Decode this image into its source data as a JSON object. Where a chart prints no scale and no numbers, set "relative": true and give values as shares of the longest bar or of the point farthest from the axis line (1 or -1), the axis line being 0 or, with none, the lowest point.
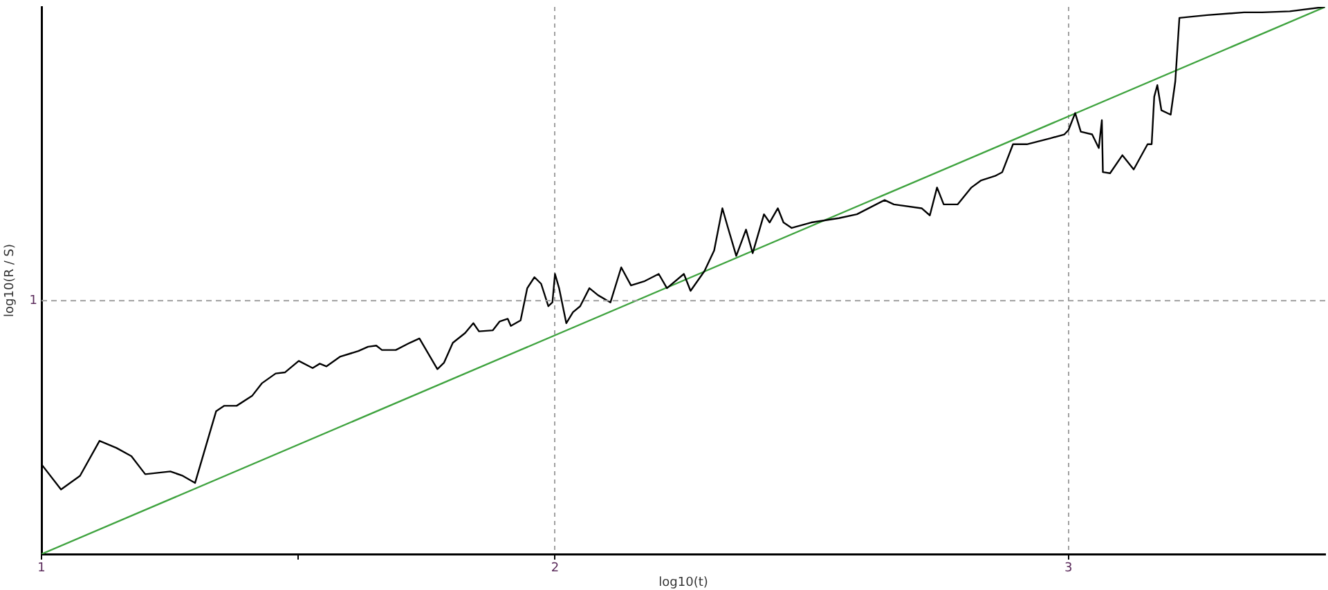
{
  "chart_data": {
    "type": "line",
    "xlabel": "log10(t)",
    "ylabel": "log10(R / S)",
    "relative": true,
    "xlim": [
      1,
      3.5
    ],
    "xticks": [
      1,
      {
        "value": 1.5,
        "label": null
      },
      2,
      3
    ],
    "grid": "x",
    "marker": "none",
    "line_style": "solid",
    "legend": false,
    "ref_lines": [
      {
        "axis": "y",
        "value": 0.463,
        "color": "#a0a0a0",
        "line_style": "dashed"
      }
    ],
    "annotations": [
      "1"
    ],
    "series": [
      {
        "color": "#000000",
        "x": [
          1.0,
          1.038,
          1.075,
          1.113,
          1.146,
          1.175,
          1.202,
          1.251,
          1.275,
          1.299,
          1.34,
          1.356,
          1.38,
          1.41,
          1.429,
          1.456,
          1.474,
          1.501,
          1.528,
          1.542,
          1.555,
          1.582,
          1.617,
          1.636,
          1.652,
          1.663,
          1.69,
          1.717,
          1.736,
          1.771,
          1.784,
          1.801,
          1.825,
          1.841,
          1.852,
          1.879,
          1.892,
          1.908,
          1.914,
          1.933,
          1.946,
          1.96,
          1.973,
          1.987,
          1.995,
          2.0,
          2.008,
          2.022,
          2.035,
          2.049,
          2.067,
          2.084,
          2.108,
          2.129,
          2.148,
          2.175,
          2.202,
          2.218,
          2.251,
          2.264,
          2.291,
          2.31,
          2.326,
          2.337,
          2.353,
          2.372,
          2.385,
          2.407,
          2.418,
          2.434,
          2.445,
          2.461,
          2.499,
          2.553,
          2.588,
          2.642,
          2.66,
          2.714,
          2.73,
          2.744,
          2.757,
          2.784,
          2.811,
          2.83,
          2.857,
          2.871,
          2.892,
          2.919,
          2.965,
          2.992,
          3.0,
          3.013,
          3.024,
          3.046,
          3.059,
          3.065,
          3.067,
          3.081,
          3.105,
          3.127,
          3.154,
          3.162,
          3.167,
          3.173,
          3.181,
          3.199,
          3.208,
          3.216,
          3.27,
          3.342,
          3.377,
          3.431,
          3.499
        ],
        "values": [
          0.164,
          0.118,
          0.143,
          0.207,
          0.194,
          0.179,
          0.146,
          0.151,
          0.143,
          0.13,
          0.261,
          0.271,
          0.271,
          0.289,
          0.312,
          0.33,
          0.332,
          0.353,
          0.34,
          0.348,
          0.343,
          0.361,
          0.371,
          0.379,
          0.381,
          0.373,
          0.373,
          0.386,
          0.394,
          0.338,
          0.35,
          0.386,
          0.404,
          0.422,
          0.407,
          0.409,
          0.425,
          0.43,
          0.417,
          0.427,
          0.486,
          0.506,
          0.494,
          0.453,
          0.46,
          0.512,
          0.486,
          0.422,
          0.442,
          0.453,
          0.486,
          0.473,
          0.46,
          0.524,
          0.491,
          0.499,
          0.512,
          0.486,
          0.512,
          0.481,
          0.517,
          0.555,
          0.632,
          0.596,
          0.545,
          0.593,
          0.55,
          0.621,
          0.606,
          0.632,
          0.606,
          0.596,
          0.606,
          0.614,
          0.621,
          0.647,
          0.639,
          0.632,
          0.619,
          0.67,
          0.639,
          0.639,
          0.67,
          0.683,
          0.691,
          0.698,
          0.749,
          0.749,
          0.76,
          0.767,
          0.775,
          0.806,
          0.772,
          0.767,
          0.742,
          0.793,
          0.698,
          0.696,
          0.729,
          0.703,
          0.749,
          0.749,
          0.836,
          0.857,
          0.811,
          0.803,
          0.864,
          0.98,
          0.985,
          0.99,
          0.99,
          0.992,
          1.0
        ]
      },
      {
        "color": "#3fa33f",
        "x": [
          1,
          3.5
        ],
        "values": [
          0,
          1
        ]
      }
    ]
  }
}
